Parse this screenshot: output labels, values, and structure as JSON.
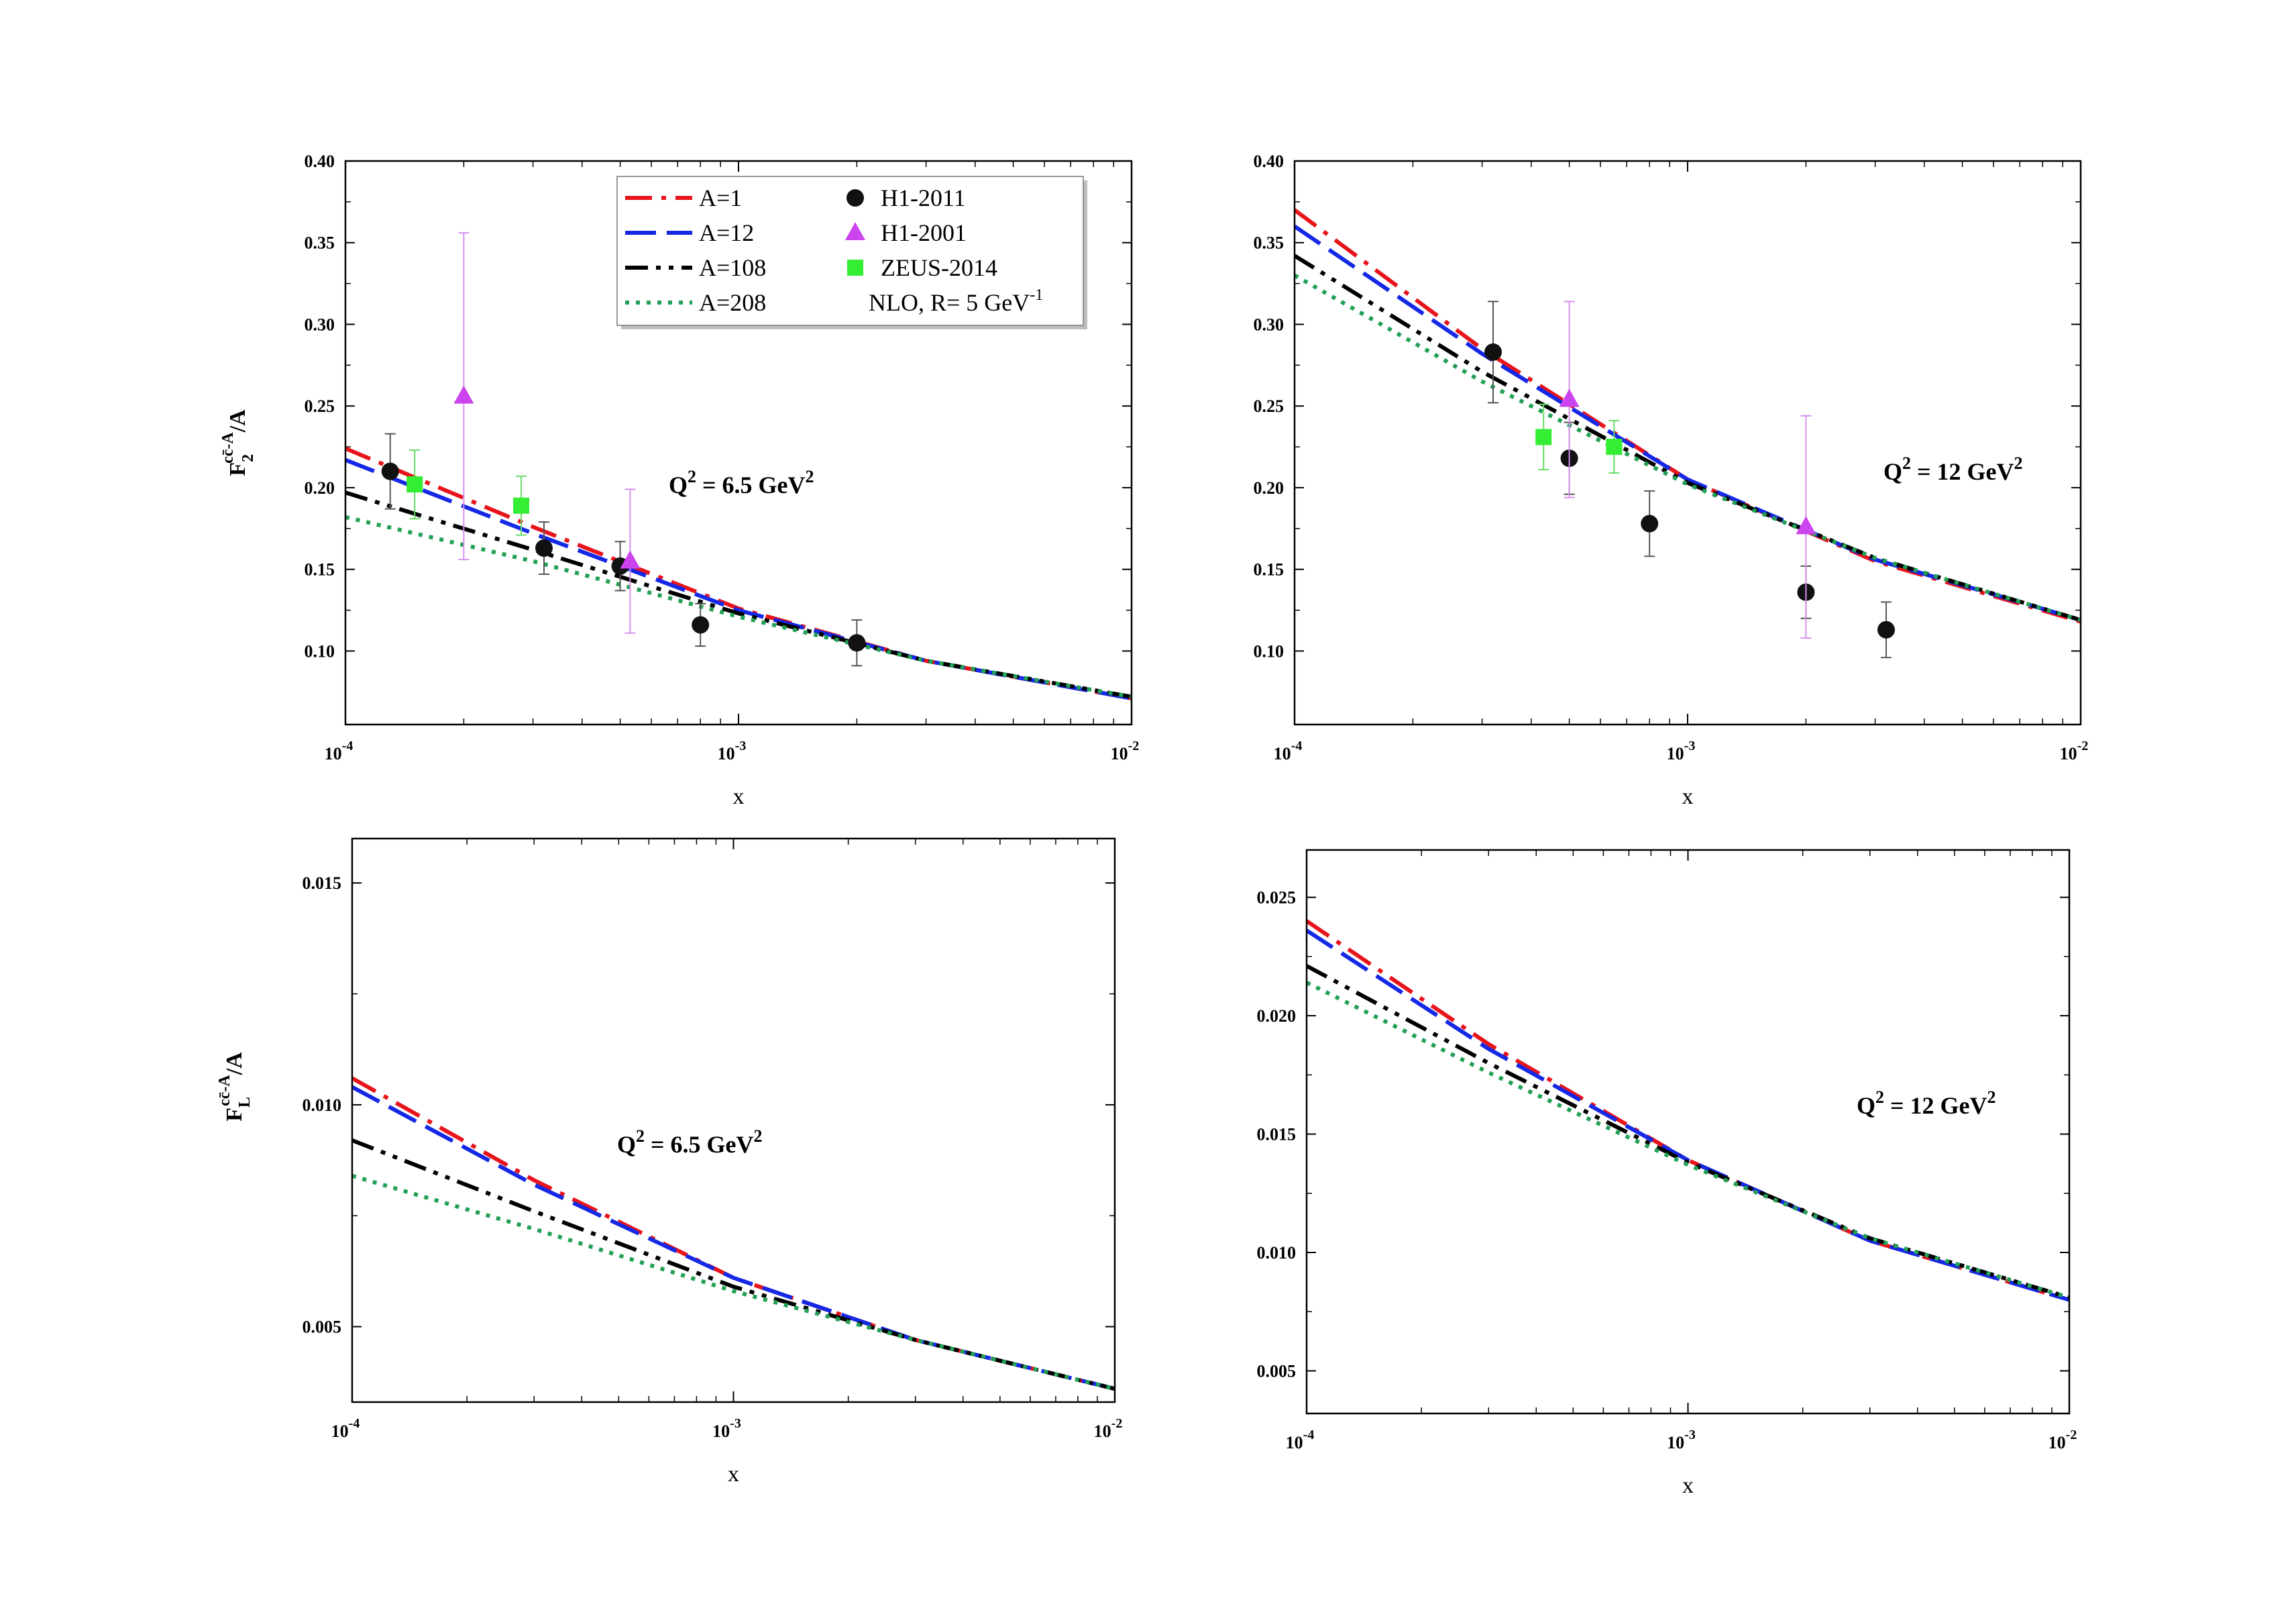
{
  "chart_data": [
    {
      "type": "line",
      "panel": "top-left",
      "xscale": "log",
      "xlim": [
        0.0001,
        0.01
      ],
      "ylim": [
        0.055,
        0.4
      ],
      "yticks": [
        0.1,
        0.15,
        0.2,
        0.25,
        0.3,
        0.35,
        0.4
      ],
      "yticklabels": [
        "0.10",
        "0.15",
        "0.20",
        "0.25",
        "0.30",
        "0.35",
        "0.40"
      ],
      "xticklabels": [
        {
          "base": "10",
          "exp": "-4"
        },
        {
          "base": "10",
          "exp": "-3"
        },
        {
          "base": "10",
          "exp": "-2"
        }
      ],
      "xlabel": "x",
      "ylabel": {
        "main": "F",
        "sub": "2",
        "sup": "cc̄-A",
        "suffix": "/A"
      },
      "annotation": {
        "prefix": "Q",
        "exp": "2",
        "rest": " = 6.5 GeV",
        "exp2": "2"
      },
      "legend": {
        "position": "top",
        "entries": [
          {
            "label": "A=1",
            "kind": "line",
            "series": "A=1"
          },
          {
            "label": "A=12",
            "kind": "line",
            "series": "A=12"
          },
          {
            "label": "A=108",
            "kind": "line",
            "series": "A=108"
          },
          {
            "label": "A=208",
            "kind": "line",
            "series": "A=208"
          },
          {
            "label": "H1-2011",
            "kind": "circle",
            "series": "H1-2011"
          },
          {
            "label": "H1-2001",
            "kind": "triangle",
            "series": "H1-2001"
          },
          {
            "label": "ZEUS-2014",
            "kind": "square",
            "series": "ZEUS-2014"
          }
        ],
        "note": {
          "text": "NLO, R= 5 GeV",
          "sup": "-1"
        }
      },
      "series": [
        {
          "name": "A=1",
          "color": "#e8141b",
          "dash": "dashdot",
          "x": [
            0.0001,
            0.0003,
            0.001,
            0.003,
            0.01
          ],
          "y": [
            0.224,
            0.176,
            0.126,
            0.094,
            0.071
          ]
        },
        {
          "name": "A=12",
          "color": "#1428e6",
          "dash": "dash",
          "x": [
            0.0001,
            0.0003,
            0.001,
            0.003,
            0.01
          ],
          "y": [
            0.217,
            0.172,
            0.125,
            0.094,
            0.071
          ]
        },
        {
          "name": "A=108",
          "color": "#000000",
          "dash": "dashdotdot",
          "x": [
            0.0001,
            0.0003,
            0.001,
            0.003,
            0.01
          ],
          "y": [
            0.197,
            0.162,
            0.123,
            0.094,
            0.072
          ]
        },
        {
          "name": "A=208",
          "color": "#22a055",
          "dash": "dot",
          "x": [
            0.0001,
            0.0003,
            0.001,
            0.003,
            0.01
          ],
          "y": [
            0.182,
            0.155,
            0.121,
            0.094,
            0.072
          ]
        }
      ],
      "points": [
        {
          "name": "H1-2011",
          "marker": "circle",
          "color": "#111111",
          "x": [
            0.00013,
            0.00032,
            0.0005,
            0.0008,
            0.002
          ],
          "y": [
            0.21,
            0.163,
            0.152,
            0.116,
            0.105
          ],
          "err": [
            0.023,
            0.016,
            0.015,
            0.013,
            0.014
          ]
        },
        {
          "name": "H1-2001",
          "marker": "triangle",
          "color": "#cc44ee",
          "x": [
            0.0002,
            0.00053
          ],
          "y": [
            0.256,
            0.155
          ],
          "err": [
            0.1,
            0.044
          ]
        },
        {
          "name": "ZEUS-2014",
          "marker": "square",
          "color": "#33ee33",
          "x": [
            0.00015,
            0.00028
          ],
          "y": [
            0.202,
            0.189
          ],
          "err": [
            0.021,
            0.018
          ]
        }
      ]
    },
    {
      "type": "line",
      "panel": "top-right",
      "xscale": "log",
      "xlim": [
        0.0001,
        0.01
      ],
      "ylim": [
        0.055,
        0.4
      ],
      "yticks": [
        0.1,
        0.15,
        0.2,
        0.25,
        0.3,
        0.35,
        0.4
      ],
      "yticklabels": [
        "0.10",
        "0.15",
        "0.20",
        "0.25",
        "0.30",
        "0.35",
        "0.40"
      ],
      "xticklabels": [
        {
          "base": "10",
          "exp": "-4"
        },
        {
          "base": "10",
          "exp": "-3"
        },
        {
          "base": "10",
          "exp": "-2"
        }
      ],
      "xlabel": "x",
      "annotation": {
        "prefix": "Q",
        "exp": "2",
        "rest": " = 12 GeV",
        "exp2": "2"
      },
      "series": [
        {
          "name": "A=1",
          "color": "#e8141b",
          "dash": "dashdot",
          "x": [
            0.0001,
            0.0003,
            0.001,
            0.003,
            0.01
          ],
          "y": [
            0.37,
            0.285,
            0.205,
            0.155,
            0.118
          ]
        },
        {
          "name": "A=12",
          "color": "#1428e6",
          "dash": "dash",
          "x": [
            0.0001,
            0.0003,
            0.001,
            0.003,
            0.01
          ],
          "y": [
            0.36,
            0.282,
            0.205,
            0.156,
            0.119
          ]
        },
        {
          "name": "A=108",
          "color": "#000000",
          "dash": "dashdotdot",
          "x": [
            0.0001,
            0.0003,
            0.001,
            0.003,
            0.01
          ],
          "y": [
            0.342,
            0.271,
            0.203,
            0.157,
            0.119
          ]
        },
        {
          "name": "A=208",
          "color": "#22a055",
          "dash": "dot",
          "x": [
            0.0001,
            0.0003,
            0.001,
            0.003,
            0.01
          ],
          "y": [
            0.33,
            0.265,
            0.202,
            0.157,
            0.119
          ]
        }
      ],
      "points": [
        {
          "name": "H1-2011",
          "marker": "circle",
          "color": "#111111",
          "x": [
            0.00032,
            0.0005,
            0.0008,
            0.002,
            0.0032
          ],
          "y": [
            0.283,
            0.218,
            0.178,
            0.136,
            0.113
          ],
          "err": [
            0.031,
            0.022,
            0.02,
            0.016,
            0.017
          ]
        },
        {
          "name": "H1-2001",
          "marker": "triangle",
          "color": "#cc44ee",
          "x": [
            0.0005,
            0.002
          ],
          "y": [
            0.254,
            0.176
          ],
          "err": [
            0.06,
            0.068
          ]
        },
        {
          "name": "ZEUS-2014",
          "marker": "square",
          "color": "#33ee33",
          "x": [
            0.00043,
            0.00065
          ],
          "y": [
            0.231,
            0.225
          ],
          "err": [
            0.02,
            0.016
          ]
        }
      ]
    },
    {
      "type": "line",
      "panel": "bottom-left",
      "xscale": "log",
      "xlim": [
        0.0001,
        0.01
      ],
      "ylim": [
        0.0033,
        0.016
      ],
      "yticks": [
        0.005,
        0.01,
        0.015
      ],
      "yticklabels": [
        "0.005",
        "0.010",
        "0.015"
      ],
      "xticklabels": [
        {
          "base": "10",
          "exp": "-4"
        },
        {
          "base": "10",
          "exp": "-3"
        },
        {
          "base": "10",
          "exp": "-2"
        }
      ],
      "xlabel": "x",
      "ylabel": {
        "main": "F",
        "sub": "L",
        "sup": "cc̄-A",
        "suffix": "/A"
      },
      "annotation": {
        "prefix": "Q",
        "exp": "2",
        "rest": " = 6.5 GeV",
        "exp2": "2"
      },
      "series": [
        {
          "name": "A=1",
          "color": "#e8141b",
          "dash": "dashdot",
          "x": [
            0.0001,
            0.0003,
            0.001,
            0.003,
            0.01
          ],
          "y": [
            0.0106,
            0.0083,
            0.0061,
            0.0047,
            0.0036
          ]
        },
        {
          "name": "A=12",
          "color": "#1428e6",
          "dash": "dash",
          "x": [
            0.0001,
            0.0003,
            0.001,
            0.003,
            0.01
          ],
          "y": [
            0.0104,
            0.0082,
            0.0061,
            0.0047,
            0.0036
          ]
        },
        {
          "name": "A=108",
          "color": "#000000",
          "dash": "dashdotdot",
          "x": [
            0.0001,
            0.0003,
            0.001,
            0.003,
            0.01
          ],
          "y": [
            0.0092,
            0.0076,
            0.0059,
            0.0047,
            0.0036
          ]
        },
        {
          "name": "A=208",
          "color": "#22a055",
          "dash": "dot",
          "x": [
            0.0001,
            0.0003,
            0.001,
            0.003,
            0.01
          ],
          "y": [
            0.0084,
            0.0072,
            0.0058,
            0.0047,
            0.0036
          ]
        }
      ],
      "points": []
    },
    {
      "type": "line",
      "panel": "bottom-right",
      "xscale": "log",
      "xlim": [
        0.0001,
        0.01
      ],
      "ylim": [
        0.0032,
        0.027
      ],
      "yticks": [
        0.005,
        0.01,
        0.015,
        0.02,
        0.025
      ],
      "yticklabels": [
        "0.005",
        "0.010",
        "0.015",
        "0.020",
        "0.025"
      ],
      "xticklabels": [
        {
          "base": "10",
          "exp": "-4"
        },
        {
          "base": "10",
          "exp": "-3"
        },
        {
          "base": "10",
          "exp": "-2"
        }
      ],
      "xlabel": "x",
      "annotation": {
        "prefix": "Q",
        "exp": "2",
        "rest": " = 12 GeV",
        "exp2": "2"
      },
      "series": [
        {
          "name": "A=1",
          "color": "#e8141b",
          "dash": "dashdot",
          "x": [
            0.0001,
            0.0003,
            0.001,
            0.003,
            0.01
          ],
          "y": [
            0.024,
            0.0188,
            0.0139,
            0.0105,
            0.008
          ]
        },
        {
          "name": "A=12",
          "color": "#1428e6",
          "dash": "dash",
          "x": [
            0.0001,
            0.0003,
            0.001,
            0.003,
            0.01
          ],
          "y": [
            0.0236,
            0.0186,
            0.0139,
            0.0105,
            0.008
          ]
        },
        {
          "name": "A=108",
          "color": "#000000",
          "dash": "dashdotdot",
          "x": [
            0.0001,
            0.0003,
            0.001,
            0.003,
            0.01
          ],
          "y": [
            0.0221,
            0.018,
            0.0138,
            0.0106,
            0.0081
          ]
        },
        {
          "name": "A=208",
          "color": "#22a055",
          "dash": "dot",
          "x": [
            0.0001,
            0.0003,
            0.001,
            0.003,
            0.01
          ],
          "y": [
            0.0214,
            0.0176,
            0.0137,
            0.0106,
            0.0081
          ]
        }
      ],
      "points": []
    }
  ]
}
